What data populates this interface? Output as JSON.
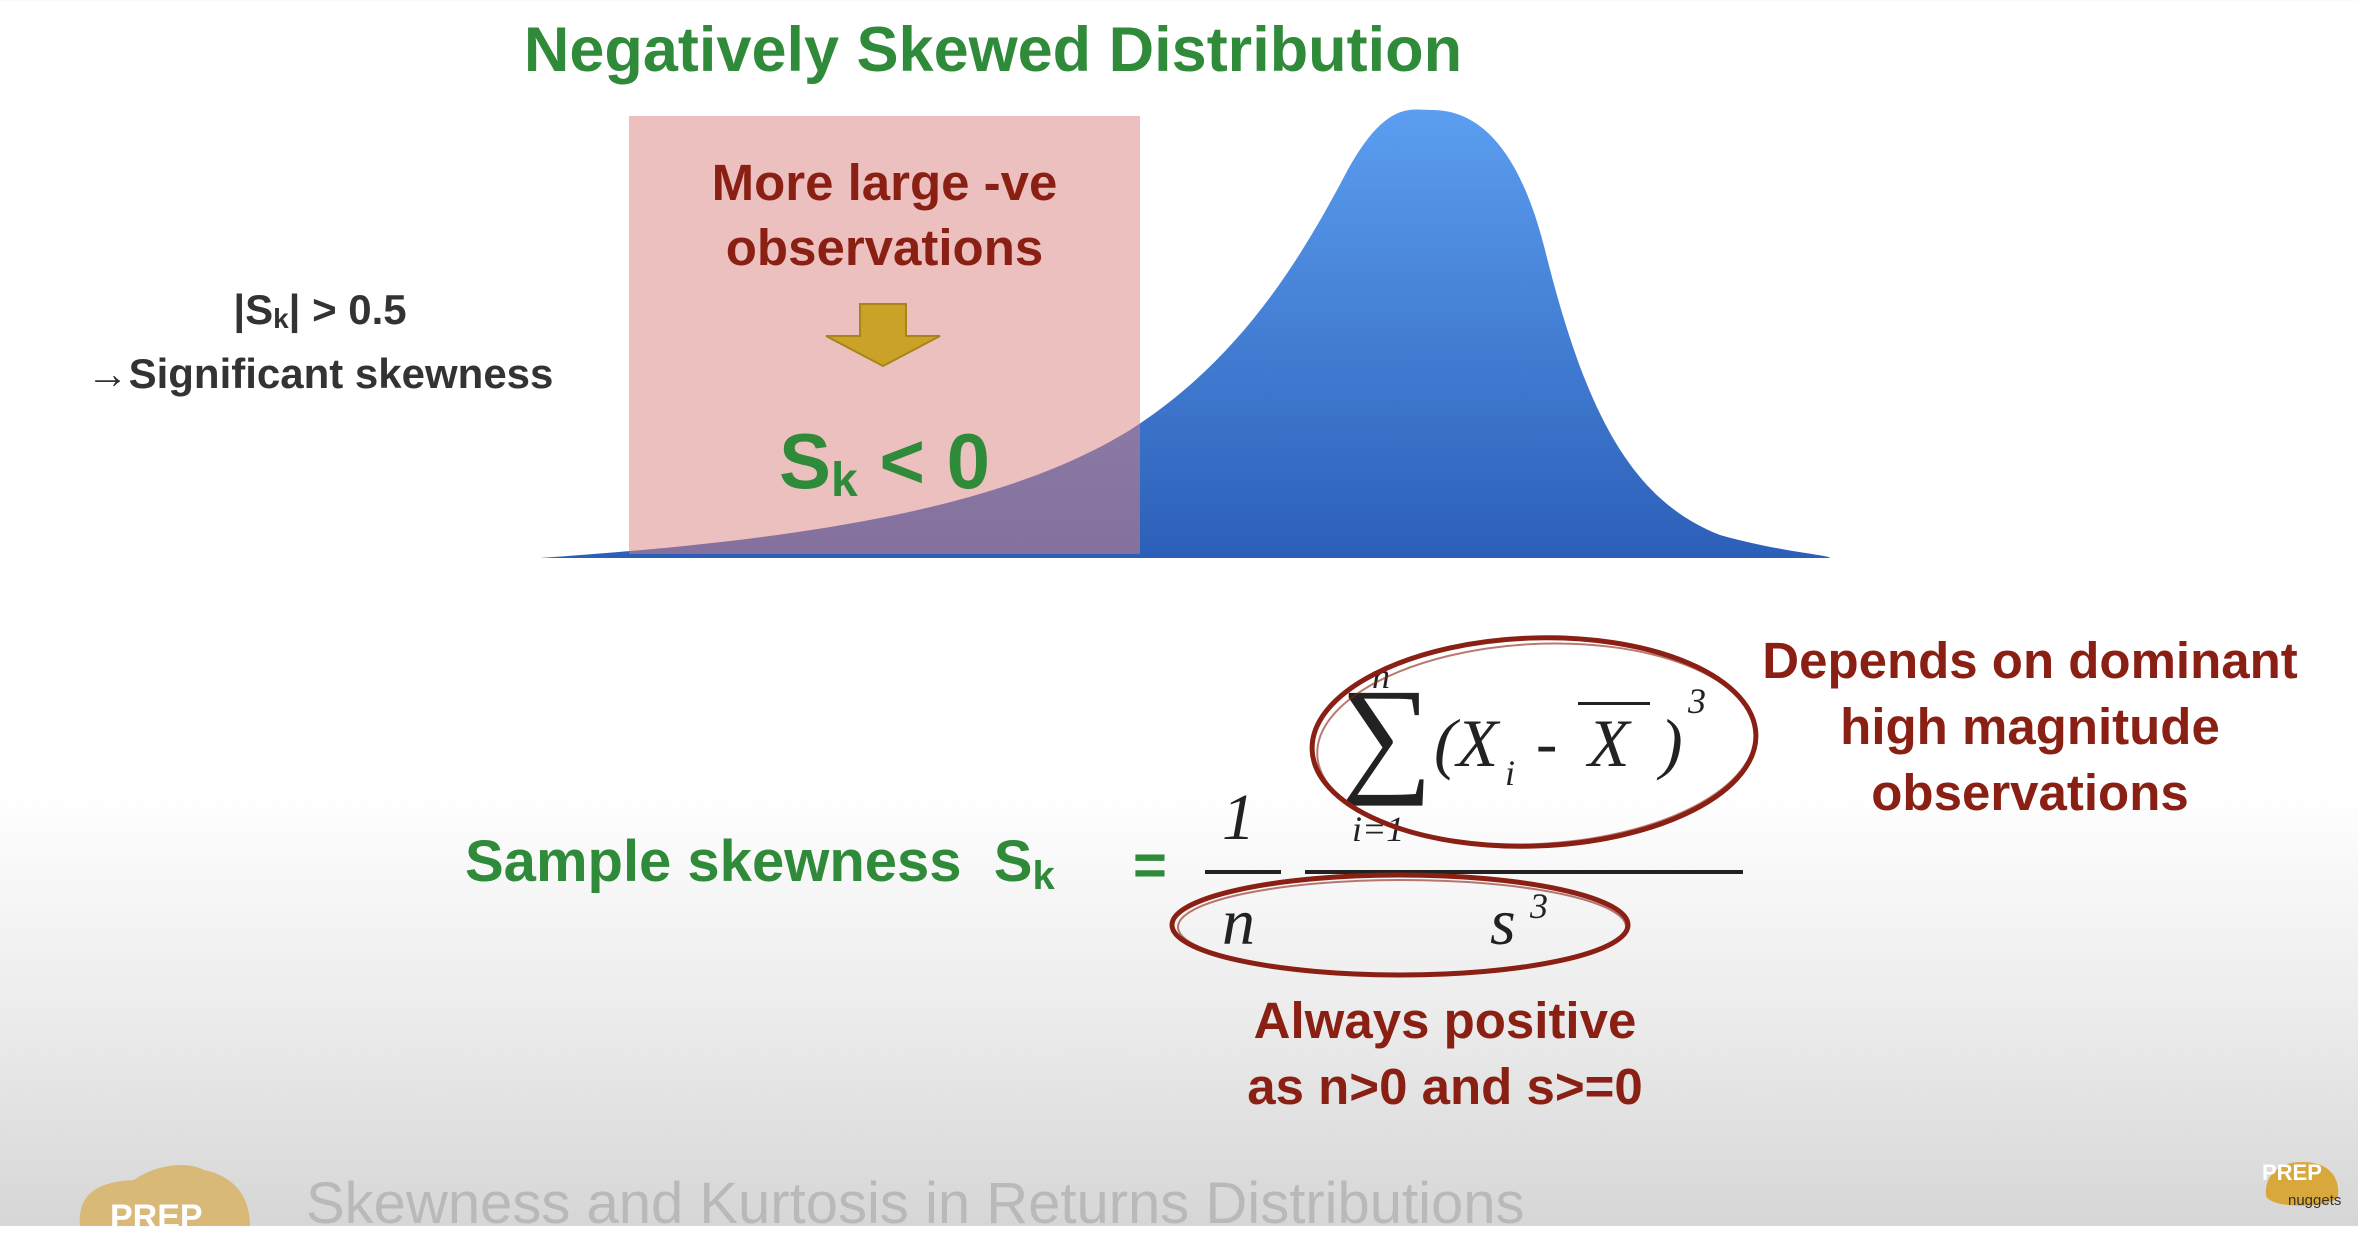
{
  "title": "Negatively Skewed Distribution",
  "box": {
    "line1": "More large -ve",
    "line2": "observations",
    "sk_symbol": "S",
    "sk_sub": "k",
    "sk_relation": "< 0"
  },
  "significance": {
    "abs_open": "|S",
    "abs_sub": "k",
    "abs_close": "| > 0.5",
    "line2": "→Significant skewness"
  },
  "formula": {
    "label": "Sample skewness",
    "sk_symbol": "S",
    "sk_sub": "k",
    "equals": "=",
    "one": "1",
    "n": "n",
    "sum_upper": "n",
    "sum_lower": "i=1",
    "sum_symbol": "∑",
    "term_open": "(X",
    "term_sub": "i",
    "term_minus": "-",
    "xbar": "X",
    "term_close": ")",
    "power": "3",
    "s": "s",
    "s_power": "3"
  },
  "annotations": {
    "depends_line1": "Depends on dominant",
    "depends_line2": "high magnitude",
    "depends_line3": "observations",
    "always_line1": "Always positive",
    "always_line2": "as n>0 and s>=0"
  },
  "footer": {
    "logo_text": "PREP",
    "title": "Skewness and Kurtosis in Returns Distributions",
    "corner_logo": "PREP",
    "corner_sub": "nuggets"
  },
  "colors": {
    "green": "#2f8a3a",
    "dark_red": "#8a1f14",
    "curve_blue": "#3f79d8",
    "arrow_gold": "#c9a227",
    "pink": "#dc8282"
  }
}
